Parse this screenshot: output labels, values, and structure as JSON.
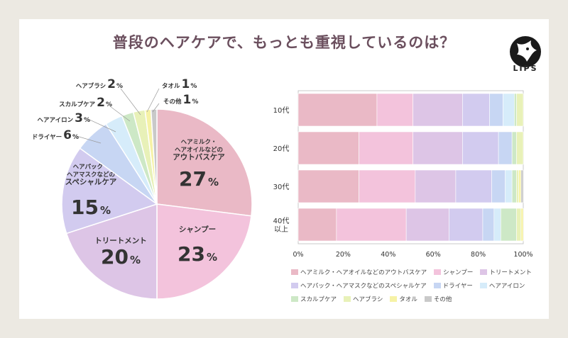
{
  "title": "普段のヘアケアで、もっとも重視しているのは？",
  "logo": {
    "text": "LIPS"
  },
  "chart_data": [
    {
      "type": "pie",
      "title": "普段のヘアケアで、もっとも重視しているのは？",
      "slices": [
        {
          "name": "アウトバスケア",
          "label_lines": [
            "ヘアミルク・",
            "ヘアオイルなどの",
            "アウトバスケア"
          ],
          "value": 27,
          "value_text": "27",
          "color": "#eab9c6"
        },
        {
          "name": "シャンプー",
          "label_lines": [
            "シャンプー"
          ],
          "value": 23,
          "value_text": "23",
          "color": "#f3c3dc"
        },
        {
          "name": "トリートメント",
          "label_lines": [
            "トリートメント"
          ],
          "value": 20,
          "value_text": "20",
          "color": "#ddc5e6"
        },
        {
          "name": "スペシャルケア",
          "label_lines": [
            "ヘアパック・",
            "ヘアマスクなどの",
            "スペシャルケア"
          ],
          "value": 15,
          "value_text": "15",
          "color": "#d2cbef"
        },
        {
          "name": "ドライヤー",
          "label_lines": [
            "ドライヤー"
          ],
          "value": 6,
          "value_text": "6",
          "color": "#c7d6f3"
        },
        {
          "name": "ヘアアイロン",
          "label_lines": [
            "ヘアアイロン"
          ],
          "value": 3,
          "value_text": "3",
          "color": "#d6ecfa"
        },
        {
          "name": "スカルプケア",
          "label_lines": [
            "スカルプケア"
          ],
          "value": 2,
          "value_text": "2",
          "color": "#cde8c6"
        },
        {
          "name": "ヘアブラシ",
          "label_lines": [
            "ヘアブラシ"
          ],
          "value": 2,
          "value_text": "2",
          "color": "#e8f1b8"
        },
        {
          "name": "タオル",
          "label_lines": [
            "タオル"
          ],
          "value": 1,
          "value_text": "1",
          "color": "#f6f2a6"
        },
        {
          "name": "その他",
          "label_lines": [
            "その他"
          ],
          "value": 1,
          "value_text": "1",
          "color": "#c9c9c9"
        }
      ],
      "unit": "%"
    },
    {
      "type": "bar",
      "orientation": "horizontal",
      "stacked": true,
      "categories": [
        "10代",
        "20代",
        "30代",
        "40代\n以上"
      ],
      "xticks": [
        "0%",
        "20%",
        "40%",
        "60%",
        "80%",
        "100%"
      ],
      "xlim": [
        0,
        100
      ],
      "series": [
        {
          "name": "ヘアミルク・ヘアオイルなどのアウトバスケア",
          "color": "#eab9c6",
          "values": [
            35,
            27,
            27,
            17
          ]
        },
        {
          "name": "シャンプー",
          "color": "#f3c3dc",
          "values": [
            16,
            24,
            25,
            31
          ]
        },
        {
          "name": "トリートメント",
          "color": "#ddc5e6",
          "values": [
            22,
            22,
            18,
            19
          ]
        },
        {
          "name": "ヘアパック・ヘアマスクなどのスペシャルケア",
          "color": "#d2cbef",
          "values": [
            12,
            16,
            16,
            15
          ]
        },
        {
          "name": "ドライヤー",
          "color": "#c7d6f3",
          "values": [
            6,
            6,
            6,
            5
          ]
        },
        {
          "name": "ヘアアイロン",
          "color": "#d6ecfa",
          "values": [
            5,
            0,
            3,
            3
          ]
        },
        {
          "name": "スカルプケア",
          "color": "#cde8c6",
          "values": [
            1,
            2,
            2,
            7
          ]
        },
        {
          "name": "ヘアブラシ",
          "color": "#e8f1b8",
          "values": [
            3,
            3,
            1,
            2
          ]
        },
        {
          "name": "タオル",
          "color": "#f6f2a6",
          "values": [
            0,
            0,
            1,
            1
          ]
        },
        {
          "name": "その他",
          "color": "#c9c9c9",
          "values": [
            0,
            0,
            1,
            0
          ]
        }
      ]
    }
  ]
}
